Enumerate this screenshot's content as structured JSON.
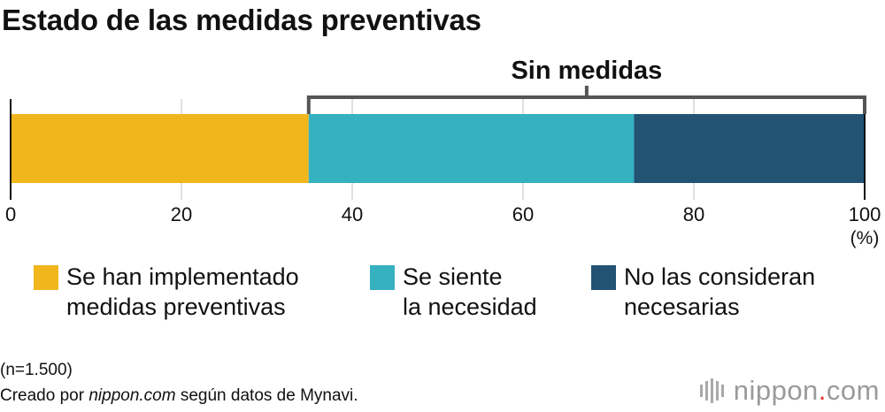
{
  "title": "Estado de las medidas preventivas",
  "chart_data": {
    "type": "bar",
    "orientation": "horizontal-stacked",
    "title": "Estado de las medidas preventivas",
    "xlim": [
      0,
      100
    ],
    "xticks": [
      "0",
      "20",
      "40",
      "60",
      "80",
      "100"
    ],
    "xunit": "(%)",
    "grid": true,
    "series": [
      {
        "name": "Se han implementado medidas preventivas",
        "values": [
          34.9
        ],
        "color": "#f0b61c"
      },
      {
        "name": "Se siente la necesidad",
        "values": [
          38.1
        ],
        "color": "#35b1c0"
      },
      {
        "name": "No las consideran necesarias",
        "values": [
          27.0
        ],
        "color": "#225373"
      }
    ],
    "annotation": {
      "label": "Sin medidas",
      "from": 34.9,
      "to": 100
    }
  },
  "legend": [
    {
      "line1": "Se han implementado",
      "line2": "medidas preventivas",
      "color": "#f0b61c"
    },
    {
      "line1": "Se siente",
      "line2": "la necesidad",
      "color": "#35b1c0"
    },
    {
      "line1": "No las consideran",
      "line2": "necesarias",
      "color": "#225373"
    }
  ],
  "notes": {
    "sample": "(n=1.500)",
    "source_prefix": "Creado por ",
    "source_site": "nippon.com",
    "source_suffix": " según datos de Mynavi."
  },
  "logo": {
    "text_main": "nippon",
    "dot": ".",
    "text_tld": "com",
    "dot_color": "#e5392e"
  }
}
